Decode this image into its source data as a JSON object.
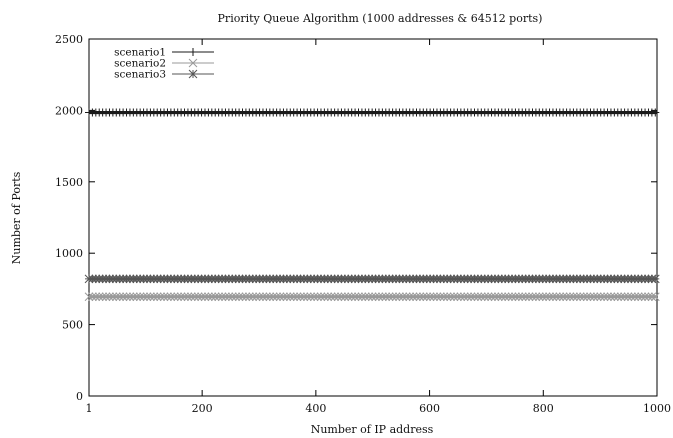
{
  "chart_data": {
    "type": "scatter",
    "title": "Priority Queue Algorithm (1000 addresses & 64512 ports)",
    "xlabel": "Number of IP address",
    "ylabel": "Number of Ports",
    "xlim": [
      1,
      1000
    ],
    "ylim": [
      0,
      2500
    ],
    "xticks": [
      1,
      200,
      400,
      600,
      800,
      1000
    ],
    "yticks": [
      0,
      500,
      1000,
      1500,
      2000,
      2500
    ],
    "grid": false,
    "legend_position": "top-left",
    "series": [
      {
        "name": "scenario1",
        "marker": "plus",
        "color": "#1a1a1a",
        "x_range": [
          1,
          1000
        ],
        "y_constant": 1985
      },
      {
        "name": "scenario2",
        "marker": "cross",
        "color": "#9a9a9a",
        "x_range": [
          1,
          1000
        ],
        "y_constant": 695
      },
      {
        "name": "scenario3",
        "marker": "star",
        "color": "#555555",
        "x_range": [
          1,
          1000
        ],
        "y_constant": 820
      }
    ]
  }
}
